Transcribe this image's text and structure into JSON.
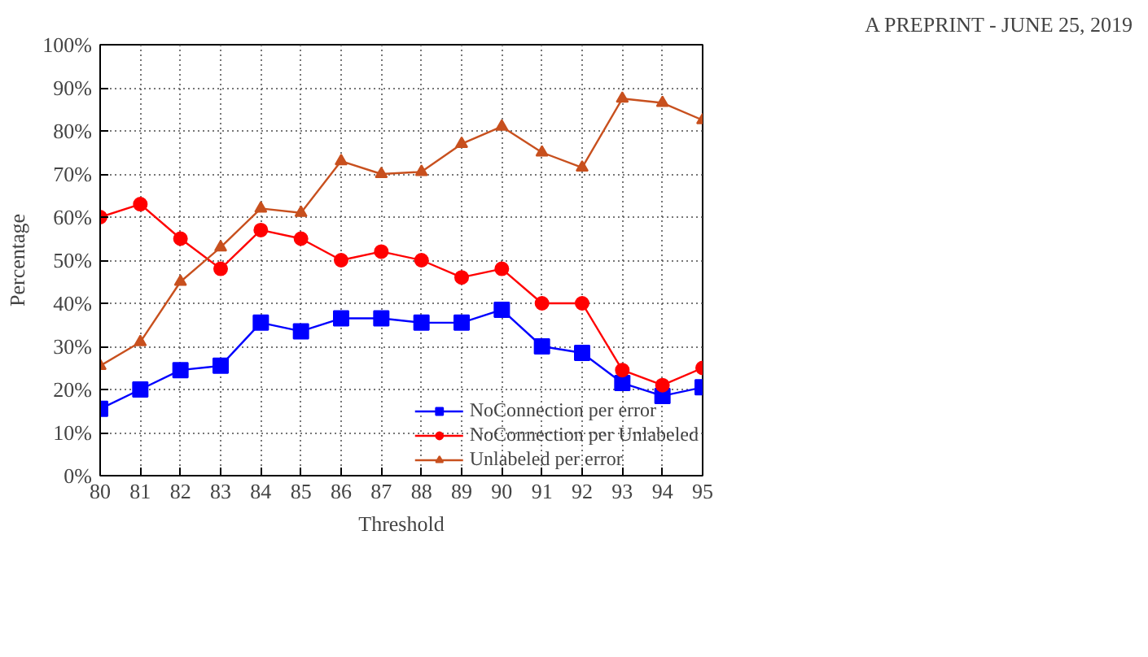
{
  "chart_data": {
    "type": "line",
    "annotations": [
      "A PREPRINT - JUNE 25, 2019"
    ],
    "xlabel": "Threshold",
    "ylabel": "Percentage",
    "x": [
      80,
      81,
      82,
      83,
      84,
      85,
      86,
      87,
      88,
      89,
      90,
      91,
      92,
      93,
      94,
      95
    ],
    "series": [
      {
        "name": "NoConnection per error",
        "color": "#0000ff",
        "marker": "square",
        "values": [
          15.5,
          20,
          24.5,
          25.5,
          35.5,
          33.5,
          36.5,
          36.5,
          35.5,
          35.5,
          38.5,
          30,
          28.5,
          21.5,
          18.5,
          20.5
        ]
      },
      {
        "name": "NoConnection per Unlabeled",
        "color": "#ff0000",
        "marker": "circle",
        "values": [
          60,
          63,
          55,
          48,
          57,
          55,
          50,
          52,
          50,
          46,
          48,
          40,
          40,
          24.5,
          21,
          25
        ]
      },
      {
        "name": "Unlabeled per error",
        "color": "#c8501e",
        "marker": "triangle",
        "values": [
          25.5,
          31,
          45,
          53,
          62,
          61,
          73,
          70,
          70.5,
          77,
          81,
          75,
          71.5,
          87.5,
          86.5,
          82.5
        ]
      }
    ],
    "xlim": [
      80,
      95
    ],
    "xticks": [
      80,
      81,
      82,
      83,
      84,
      85,
      86,
      87,
      88,
      89,
      90,
      91,
      92,
      93,
      94,
      95
    ],
    "ylim": [
      0,
      100
    ],
    "yticks": [
      {
        "value": 0,
        "label": "0%"
      },
      {
        "value": 10,
        "label": "10%"
      },
      {
        "value": 20,
        "label": "20%"
      },
      {
        "value": 30,
        "label": "30%"
      },
      {
        "value": 40,
        "label": "40%"
      },
      {
        "value": 50,
        "label": "50%"
      },
      {
        "value": 60,
        "label": "60%"
      },
      {
        "value": 70,
        "label": "70%"
      },
      {
        "value": 80,
        "label": "80%"
      },
      {
        "value": 90,
        "label": "90%"
      },
      {
        "value": 100,
        "label": "100%"
      }
    ],
    "grid": true,
    "legend": "bottom right",
    "line_style": "solid"
  }
}
